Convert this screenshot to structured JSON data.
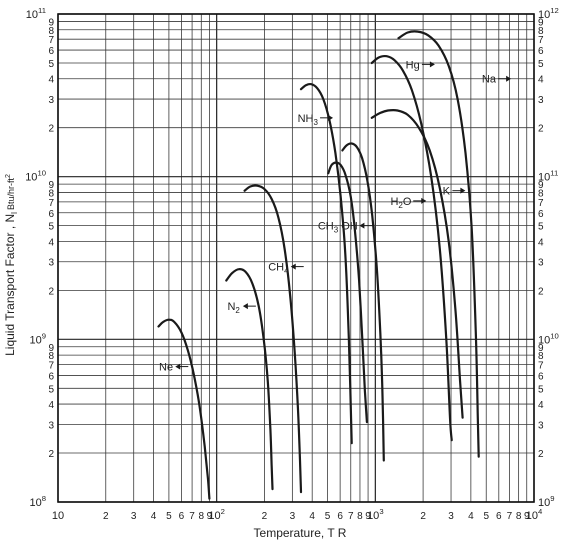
{
  "chart_data": {
    "type": "line",
    "title": "",
    "xlabel": "Temperature, T R",
    "ylabel": "Liquid Transport Factor , N",
    "ylabel_sub": "l",
    "ylabel_unit": "Btu/hr-ft",
    "ylabel_unit_sup": "2",
    "x_scale": "log",
    "y_scale": "log",
    "xlim": [
      10,
      10000
    ],
    "ylim": [
      100000000.0,
      100000000000.0
    ],
    "y2lim": [
      1000000000.0,
      1000000000000.0
    ],
    "grid": true,
    "x_ticks": [
      {
        "v": 10,
        "label": "10",
        "sup": ""
      },
      {
        "v": 20,
        "label": "2",
        "sup": ""
      },
      {
        "v": 30,
        "label": "3",
        "sup": ""
      },
      {
        "v": 40,
        "label": "4",
        "sup": ""
      },
      {
        "v": 50,
        "label": "5",
        "sup": ""
      },
      {
        "v": 60,
        "label": "6",
        "sup": ""
      },
      {
        "v": 70,
        "label": "7",
        "sup": ""
      },
      {
        "v": 80,
        "label": "8",
        "sup": ""
      },
      {
        "v": 90,
        "label": "9",
        "sup": ""
      },
      {
        "v": 100,
        "label": "10",
        "sup": "2"
      },
      {
        "v": 200,
        "label": "2",
        "sup": ""
      },
      {
        "v": 300,
        "label": "3",
        "sup": ""
      },
      {
        "v": 400,
        "label": "4",
        "sup": ""
      },
      {
        "v": 500,
        "label": "5",
        "sup": ""
      },
      {
        "v": 600,
        "label": "6",
        "sup": ""
      },
      {
        "v": 700,
        "label": "7",
        "sup": ""
      },
      {
        "v": 800,
        "label": "8",
        "sup": ""
      },
      {
        "v": 900,
        "label": "9",
        "sup": ""
      },
      {
        "v": 1000,
        "label": "10",
        "sup": "3"
      },
      {
        "v": 2000,
        "label": "2",
        "sup": ""
      },
      {
        "v": 3000,
        "label": "3",
        "sup": ""
      },
      {
        "v": 4000,
        "label": "4",
        "sup": ""
      },
      {
        "v": 5000,
        "label": "5",
        "sup": ""
      },
      {
        "v": 6000,
        "label": "6",
        "sup": ""
      },
      {
        "v": 7000,
        "label": "7",
        "sup": ""
      },
      {
        "v": 8000,
        "label": "8",
        "sup": ""
      },
      {
        "v": 9000,
        "label": "9",
        "sup": ""
      },
      {
        "v": 10000,
        "label": "10",
        "sup": "4"
      }
    ],
    "y_ticks": [
      {
        "v": 100000000.0,
        "label": "10",
        "sup": "8"
      },
      {
        "v": 200000000.0,
        "label": "2",
        "sup": ""
      },
      {
        "v": 300000000.0,
        "label": "3",
        "sup": ""
      },
      {
        "v": 400000000.0,
        "label": "4",
        "sup": ""
      },
      {
        "v": 500000000.0,
        "label": "5",
        "sup": ""
      },
      {
        "v": 600000000.0,
        "label": "6",
        "sup": ""
      },
      {
        "v": 700000000.0,
        "label": "7",
        "sup": ""
      },
      {
        "v": 800000000.0,
        "label": "8",
        "sup": ""
      },
      {
        "v": 900000000.0,
        "label": "9",
        "sup": ""
      },
      {
        "v": 1000000000.0,
        "label": "10",
        "sup": "9"
      },
      {
        "v": 2000000000.0,
        "label": "2",
        "sup": ""
      },
      {
        "v": 3000000000.0,
        "label": "3",
        "sup": ""
      },
      {
        "v": 4000000000.0,
        "label": "4",
        "sup": ""
      },
      {
        "v": 5000000000.0,
        "label": "5",
        "sup": ""
      },
      {
        "v": 6000000000.0,
        "label": "6",
        "sup": ""
      },
      {
        "v": 7000000000.0,
        "label": "7",
        "sup": ""
      },
      {
        "v": 8000000000.0,
        "label": "8",
        "sup": ""
      },
      {
        "v": 9000000000.0,
        "label": "9",
        "sup": ""
      },
      {
        "v": 10000000000.0,
        "label": "10",
        "sup": "10"
      },
      {
        "v": 20000000000.0,
        "label": "2",
        "sup": ""
      },
      {
        "v": 30000000000.0,
        "label": "3",
        "sup": ""
      },
      {
        "v": 40000000000.0,
        "label": "4",
        "sup": ""
      },
      {
        "v": 50000000000.0,
        "label": "5",
        "sup": ""
      },
      {
        "v": 60000000000.0,
        "label": "6",
        "sup": ""
      },
      {
        "v": 70000000000.0,
        "label": "7",
        "sup": ""
      },
      {
        "v": 80000000000.0,
        "label": "8",
        "sup": ""
      },
      {
        "v": 90000000000.0,
        "label": "9",
        "sup": ""
      },
      {
        "v": 100000000000.0,
        "label": "10",
        "sup": "11"
      }
    ],
    "y2_ticks": [
      {
        "v": 1000000000.0,
        "label": "10",
        "sup": "9"
      },
      {
        "v": 2000000000.0,
        "label": "2",
        "sup": ""
      },
      {
        "v": 3000000000.0,
        "label": "3",
        "sup": ""
      },
      {
        "v": 4000000000.0,
        "label": "4",
        "sup": ""
      },
      {
        "v": 5000000000.0,
        "label": "5",
        "sup": ""
      },
      {
        "v": 6000000000.0,
        "label": "6",
        "sup": ""
      },
      {
        "v": 7000000000.0,
        "label": "7",
        "sup": ""
      },
      {
        "v": 8000000000.0,
        "label": "8",
        "sup": ""
      },
      {
        "v": 9000000000.0,
        "label": "9",
        "sup": ""
      },
      {
        "v": 10000000000.0,
        "label": "10",
        "sup": "10"
      },
      {
        "v": 20000000000.0,
        "label": "2",
        "sup": ""
      },
      {
        "v": 30000000000.0,
        "label": "3",
        "sup": ""
      },
      {
        "v": 40000000000.0,
        "label": "4",
        "sup": ""
      },
      {
        "v": 50000000000.0,
        "label": "5",
        "sup": ""
      },
      {
        "v": 60000000000.0,
        "label": "6",
        "sup": ""
      },
      {
        "v": 70000000000.0,
        "label": "7",
        "sup": ""
      },
      {
        "v": 80000000000.0,
        "label": "8",
        "sup": ""
      },
      {
        "v": 90000000000.0,
        "label": "9",
        "sup": ""
      },
      {
        "v": 100000000000.0,
        "label": "10",
        "sup": "11"
      },
      {
        "v": 200000000000.0,
        "label": "2",
        "sup": ""
      },
      {
        "v": 300000000000.0,
        "label": "3",
        "sup": ""
      },
      {
        "v": 400000000000.0,
        "label": "4",
        "sup": ""
      },
      {
        "v": 500000000000.0,
        "label": "5",
        "sup": ""
      },
      {
        "v": 600000000000.0,
        "label": "6",
        "sup": ""
      },
      {
        "v": 700000000000.0,
        "label": "7",
        "sup": ""
      },
      {
        "v": 800000000000.0,
        "label": "8",
        "sup": ""
      },
      {
        "v": 900000000000.0,
        "label": "9",
        "sup": ""
      },
      {
        "v": 1000000000000.0,
        "label": "10",
        "sup": "12"
      }
    ],
    "series": [
      {
        "name": "Ne",
        "name_sub": "",
        "axis": "left",
        "arrow": "left",
        "label_pos": {
          "x": 48,
          "y": 680000000.0
        },
        "points": [
          [
            43,
            1200000000.0
          ],
          [
            46,
            1280000000.0
          ],
          [
            50,
            1320000000.0
          ],
          [
            54,
            1280000000.0
          ],
          [
            60,
            1100000000.0
          ],
          [
            66,
            850000000.0
          ],
          [
            72,
            600000000.0
          ],
          [
            78,
            390000000.0
          ],
          [
            84,
            220000000.0
          ],
          [
            88,
            140000000.0
          ],
          [
            90,
            105000000.0
          ]
        ]
      },
      {
        "name": "N",
        "name_sub": "2",
        "axis": "left",
        "arrow": "left",
        "label_pos": {
          "x": 128,
          "y": 1600000000.0
        },
        "points": [
          [
            115,
            2300000000.0
          ],
          [
            125,
            2550000000.0
          ],
          [
            138,
            2700000000.0
          ],
          [
            152,
            2600000000.0
          ],
          [
            168,
            2200000000.0
          ],
          [
            184,
            1600000000.0
          ],
          [
            198,
            1000000000.0
          ],
          [
            210,
            550000000.0
          ],
          [
            218,
            280000000.0
          ],
          [
            222,
            170000000.0
          ],
          [
            225,
            120000000.0
          ]
        ]
      },
      {
        "name": "CH",
        "name_sub": "4",
        "axis": "left",
        "arrow": "left",
        "label_pos": {
          "x": 245,
          "y": 2800000000.0
        },
        "points": [
          [
            150,
            8200000000.0
          ],
          [
            163,
            8700000000.0
          ],
          [
            180,
            8800000000.0
          ],
          [
            200,
            8400000000.0
          ],
          [
            222,
            7300000000.0
          ],
          [
            245,
            5600000000.0
          ],
          [
            268,
            3600000000.0
          ],
          [
            290,
            1900000000.0
          ],
          [
            310,
            850000000.0
          ],
          [
            325,
            380000000.0
          ],
          [
            335,
            180000000.0
          ],
          [
            340,
            115000000.0
          ]
        ]
      },
      {
        "name": "NH",
        "name_sub": "3",
        "axis": "left",
        "arrow": "right",
        "label_pos": {
          "x": 375,
          "y": 23000000000.0
        },
        "points": [
          [
            340,
            34500000000.0
          ],
          [
            365,
            36500000000.0
          ],
          [
            395,
            37000000000.0
          ],
          [
            430,
            35000000000.0
          ],
          [
            470,
            30000000000.0
          ],
          [
            515,
            22000000000.0
          ],
          [
            560,
            14000000000.0
          ],
          [
            605,
            7500000000.0
          ],
          [
            645,
            3500000000.0
          ],
          [
            675,
            1300000000.0
          ],
          [
            695,
            500000000.0
          ],
          [
            710,
            230000000.0
          ]
        ]
      },
      {
        "name": "CH",
        "name_sub": "3",
        "name_suffix": " OH",
        "axis": "left",
        "arrow": "left",
        "label_pos": {
          "x": 580,
          "y": 5000000000.0
        },
        "points": [
          [
            505,
            10500000000.0
          ],
          [
            530,
            11800000000.0
          ],
          [
            565,
            12200000000.0
          ],
          [
            605,
            11800000000.0
          ],
          [
            650,
            10200000000.0
          ],
          [
            700,
            7500000000.0
          ],
          [
            745,
            4600000000.0
          ],
          [
            790,
            2300000000.0
          ],
          [
            830,
            950000000.0
          ],
          [
            860,
            480000000.0
          ],
          [
            885,
            310000000.0
          ]
        ]
      },
      {
        "name": "H",
        "name_sub": "2",
        "name_suffix": "O",
        "axis": "left",
        "arrow": "right",
        "label_pos": {
          "x": 1450,
          "y": 7100000000.0
        },
        "points": [
          [
            620,
            14500000000.0
          ],
          [
            660,
            15600000000.0
          ],
          [
            710,
            16000000000.0
          ],
          [
            765,
            15200000000.0
          ],
          [
            825,
            13000000000.0
          ],
          [
            890,
            9500000000.0
          ],
          [
            955,
            5800000000.0
          ],
          [
            1020,
            2800000000.0
          ],
          [
            1075,
            1100000000.0
          ],
          [
            1110,
            450000000.0
          ],
          [
            1130,
            180000000.0
          ]
        ]
      },
      {
        "name": "K",
        "name_sub": "",
        "axis": "left",
        "arrow": "right",
        "label_pos": {
          "x": 2800,
          "y": 8200000000.0
        },
        "points": [
          [
            950,
            23000000000.0
          ],
          [
            1060,
            24500000000.0
          ],
          [
            1200,
            25500000000.0
          ],
          [
            1380,
            25500000000.0
          ],
          [
            1600,
            24000000000.0
          ],
          [
            1880,
            20000000000.0
          ],
          [
            2200,
            14500000000.0
          ],
          [
            2550,
            8500000000.0
          ],
          [
            2900,
            4000000000.0
          ],
          [
            3200,
            1500000000.0
          ],
          [
            3420,
            550000000.0
          ],
          [
            3550,
            330000000.0
          ]
        ]
      },
      {
        "name": "Hg",
        "name_sub": "",
        "axis": "right",
        "arrow": "right",
        "label_pos": {
          "x": 1720,
          "y": 490000000000.0
        },
        "points": [
          [
            950,
            500000000000.0
          ],
          [
            1050,
            540000000000.0
          ],
          [
            1180,
            550000000000.0
          ],
          [
            1320,
            520000000000.0
          ],
          [
            1490,
            450000000000.0
          ],
          [
            1700,
            340000000000.0
          ],
          [
            1950,
            210000000000.0
          ],
          [
            2250,
            100000000000.0
          ],
          [
            2550,
            36000000000.0
          ],
          [
            2800,
            10000000000.0
          ],
          [
            2960,
            3200000000.0
          ],
          [
            3030,
            2400000000.0
          ]
        ]
      },
      {
        "name": "Na",
        "name_sub": "",
        "axis": "right",
        "arrow": "right",
        "label_pos": {
          "x": 5200,
          "y": 400000000000.0
        },
        "points": [
          [
            1400,
            710000000000.0
          ],
          [
            1600,
            770000000000.0
          ],
          [
            1850,
            780000000000.0
          ],
          [
            2150,
            740000000000.0
          ],
          [
            2500,
            640000000000.0
          ],
          [
            2900,
            480000000000.0
          ],
          [
            3300,
            300000000000.0
          ],
          [
            3700,
            140000000000.0
          ],
          [
            4050,
            48000000000.0
          ],
          [
            4300,
            11000000000.0
          ],
          [
            4420,
            3500000000.0
          ],
          [
            4480,
            1900000000.0
          ]
        ]
      }
    ]
  }
}
